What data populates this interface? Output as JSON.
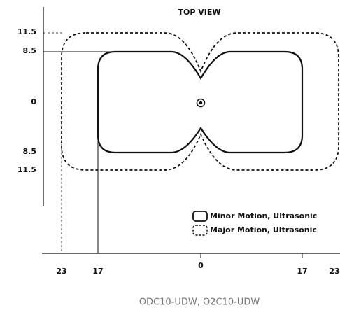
{
  "title": "TOP VIEW",
  "y_labels": [
    "11.5",
    "8.5",
    "0",
    "8.5",
    "11.5"
  ],
  "x_labels": [
    "23",
    "17",
    "0",
    "17",
    "23"
  ],
  "legend": [
    "Minor Motion, Ultrasonic",
    "Major Motion, Ultrasonic"
  ],
  "caption": "ODC10-UDW, O2C10-UDW"
}
